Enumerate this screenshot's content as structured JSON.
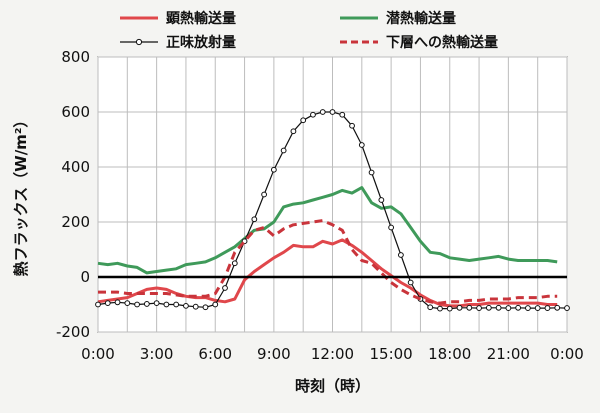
{
  "chart_data": {
    "type": "line",
    "title": "",
    "xlabel": "時刻（時）",
    "ylabel": "熱フラックス（W/m²）",
    "xlim": [
      0,
      24
    ],
    "ylim": [
      -200,
      800
    ],
    "x_tick_labels": [
      "0:00",
      "3:00",
      "6:00",
      "9:00",
      "12:00",
      "15:00",
      "18:00",
      "21:00",
      "0:00"
    ],
    "y_tick_labels": [
      "800",
      "600",
      "400",
      "200",
      "0",
      "-200"
    ],
    "grid": true,
    "legend_position": "top",
    "series": [
      {
        "name": "顕熱輸送量",
        "color": "#e0474b",
        "style": "solid",
        "x": [
          0,
          0.5,
          1,
          1.5,
          2,
          2.5,
          3,
          3.5,
          4,
          4.5,
          5,
          5.5,
          6,
          6.5,
          7,
          7.5,
          8,
          8.5,
          9,
          9.5,
          10,
          10.5,
          11,
          11.5,
          12,
          12.5,
          13,
          13.5,
          14,
          14.5,
          15,
          15.5,
          16,
          16.5,
          17,
          17.5,
          18,
          18.5,
          19,
          19.5,
          20,
          20.5,
          21,
          21.5,
          22,
          22.5,
          23,
          23.5
        ],
        "values": [
          -90,
          -85,
          -80,
          -75,
          -60,
          -45,
          -40,
          -45,
          -60,
          -70,
          -75,
          -75,
          -85,
          -90,
          -80,
          -10,
          20,
          45,
          70,
          90,
          115,
          110,
          110,
          130,
          120,
          135,
          115,
          90,
          60,
          30,
          5,
          -20,
          -40,
          -65,
          -85,
          -100,
          -105,
          -105,
          -100,
          -100,
          -95,
          -95,
          -95,
          -95,
          -95,
          -95,
          -100,
          -100
        ]
      },
      {
        "name": "潜熱輸送量",
        "color": "#3f9a5a",
        "style": "solid",
        "x": [
          0,
          0.5,
          1,
          1.5,
          2,
          2.5,
          3,
          3.5,
          4,
          4.5,
          5,
          5.5,
          6,
          6.5,
          7,
          7.5,
          8,
          8.5,
          9,
          9.5,
          10,
          10.5,
          11,
          11.5,
          12,
          12.5,
          13,
          13.5,
          14,
          14.5,
          15,
          15.5,
          16,
          16.5,
          17,
          17.5,
          18,
          18.5,
          19,
          19.5,
          20,
          20.5,
          21,
          21.5,
          22,
          22.5,
          23,
          23.5
        ],
        "values": [
          50,
          45,
          50,
          40,
          35,
          15,
          20,
          25,
          30,
          45,
          50,
          55,
          70,
          90,
          110,
          140,
          170,
          175,
          200,
          255,
          265,
          270,
          280,
          290,
          300,
          315,
          305,
          325,
          270,
          250,
          255,
          230,
          180,
          130,
          90,
          85,
          70,
          65,
          60,
          65,
          70,
          75,
          65,
          60,
          60,
          60,
          60,
          55
        ]
      },
      {
        "name": "正味放射量",
        "color": "#111111",
        "style": "marker",
        "x": [
          0,
          0.5,
          1,
          1.5,
          2,
          2.5,
          3,
          3.5,
          4,
          4.5,
          5,
          5.5,
          6,
          6.5,
          7,
          7.5,
          8,
          8.5,
          9,
          9.5,
          10,
          10.5,
          11,
          11.5,
          12,
          12.5,
          13,
          13.5,
          14,
          14.5,
          15,
          15.5,
          16,
          16.5,
          17,
          17.5,
          18,
          18.5,
          19,
          19.5,
          20,
          20.5,
          21,
          21.5,
          22,
          22.5,
          23,
          23.5,
          24
        ],
        "values": [
          -100,
          -95,
          -92,
          -95,
          -100,
          -98,
          -95,
          -100,
          -100,
          -105,
          -108,
          -110,
          -100,
          -40,
          50,
          130,
          210,
          300,
          390,
          460,
          530,
          570,
          590,
          600,
          600,
          590,
          550,
          480,
          380,
          280,
          180,
          80,
          -20,
          -80,
          -110,
          -115,
          -115,
          -112,
          -112,
          -113,
          -112,
          -112,
          -113,
          -112,
          -113,
          -113,
          -113,
          -112,
          -113
        ]
      },
      {
        "name": "下層への熱輸送量",
        "color": "#c9343b",
        "style": "dashed",
        "x": [
          0,
          0.5,
          1,
          1.5,
          2,
          2.5,
          3,
          3.5,
          4,
          4.5,
          5,
          5.5,
          6,
          6.5,
          7,
          7.5,
          8,
          8.5,
          9,
          9.5,
          10,
          10.5,
          11,
          11.5,
          12,
          12.5,
          13,
          13.5,
          14,
          14.5,
          15,
          15.5,
          16,
          16.5,
          17,
          17.5,
          18,
          18.5,
          19,
          19.5,
          20,
          20.5,
          21,
          21.5,
          22,
          22.5,
          23,
          23.5
        ],
        "values": [
          -55,
          -55,
          -55,
          -60,
          -60,
          -60,
          -60,
          -60,
          -65,
          -70,
          -70,
          -70,
          -60,
          0,
          90,
          130,
          170,
          180,
          150,
          175,
          190,
          195,
          200,
          205,
          190,
          170,
          100,
          60,
          50,
          15,
          -20,
          -45,
          -65,
          -80,
          -90,
          -95,
          -90,
          -90,
          -85,
          -85,
          -80,
          -80,
          -80,
          -75,
          -75,
          -75,
          -70,
          -70
        ]
      }
    ]
  }
}
